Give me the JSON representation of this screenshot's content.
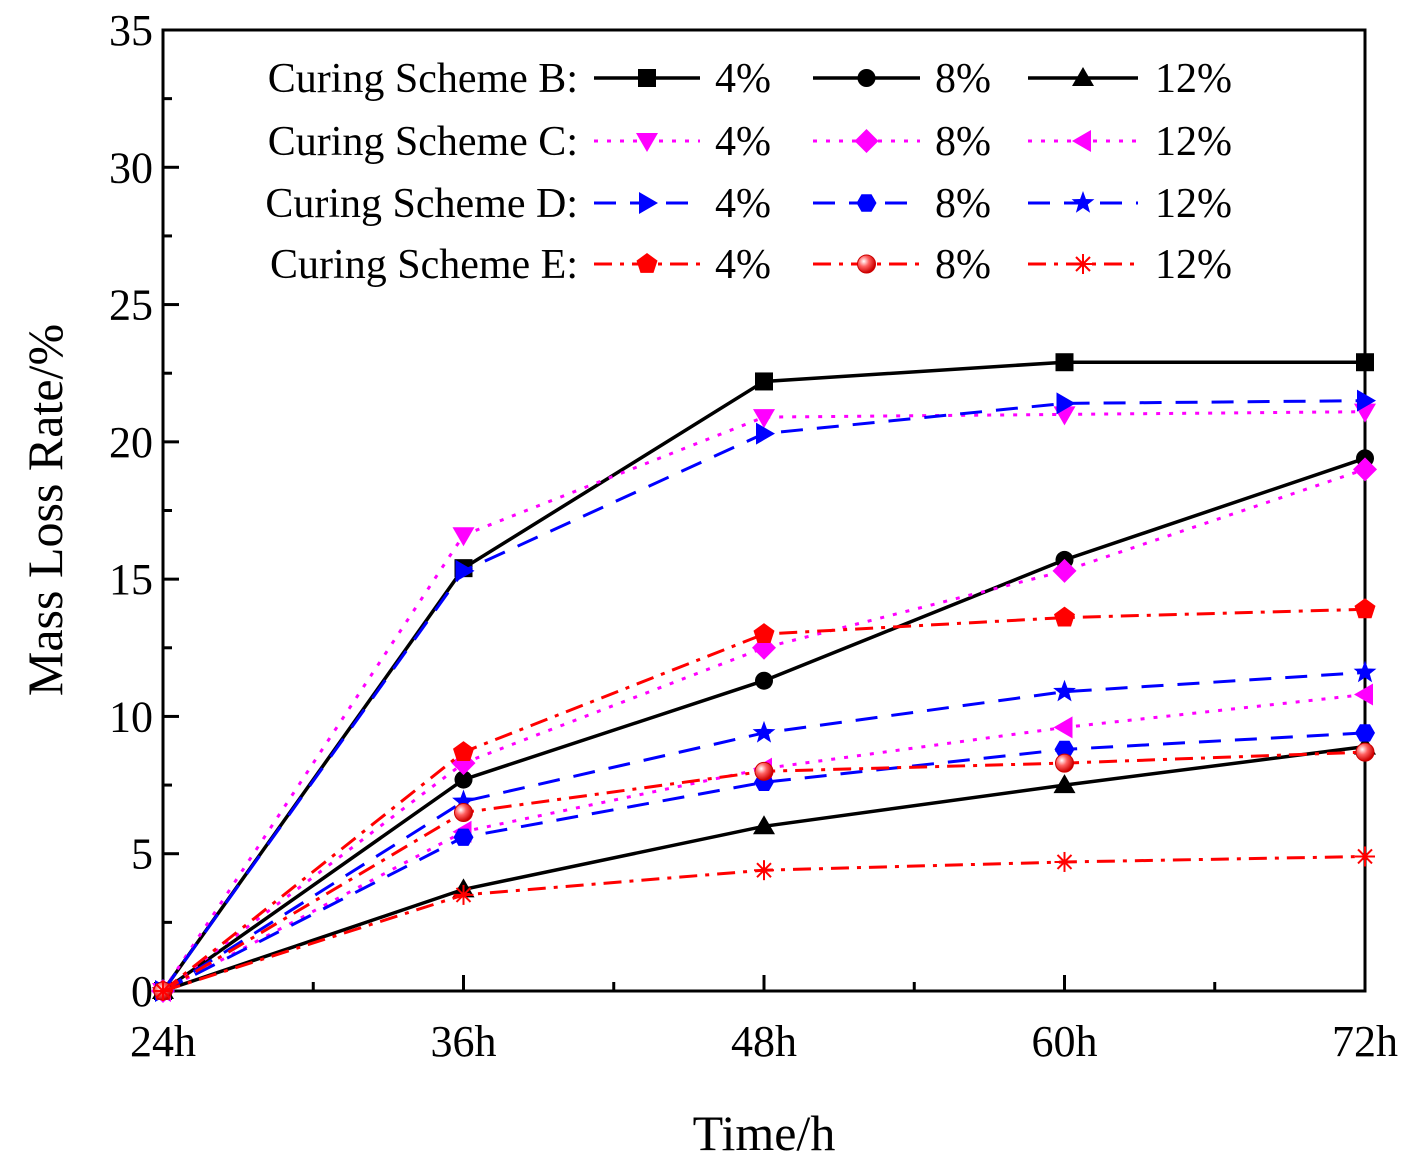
{
  "chart_data": {
    "type": "line",
    "title": "",
    "xlabel": "Time/h",
    "ylabel": "Mass Loss Rate/%",
    "categories": [
      "24h",
      "36h",
      "48h",
      "60h",
      "72h"
    ],
    "ylim": [
      0,
      35
    ],
    "yticks": [
      0,
      5,
      10,
      15,
      20,
      25,
      30,
      35
    ],
    "grid": false,
    "legend_position": "top",
    "legend_groups": [
      {
        "label": "Curing Scheme B:",
        "series": [
          "B 4%",
          "B 8%",
          "B 12%"
        ]
      },
      {
        "label": "Curing Scheme C:",
        "series": [
          "C 4%",
          "C 8%",
          "C 12%"
        ]
      },
      {
        "label": "Curing Scheme D:",
        "series": [
          "D 4%",
          "D 8%",
          "D 12%"
        ]
      },
      {
        "label": "Curing Scheme E:",
        "series": [
          "E 4%",
          "E 8%",
          "E 12%"
        ]
      }
    ],
    "series": [
      {
        "name": "B 4%",
        "legend": "4%",
        "color": "#000000",
        "dash": "solid",
        "marker": "square",
        "values": [
          0,
          15.4,
          22.2,
          22.9,
          22.9
        ]
      },
      {
        "name": "B 8%",
        "legend": "8%",
        "color": "#000000",
        "dash": "solid",
        "marker": "circle",
        "values": [
          0,
          7.7,
          11.3,
          15.7,
          19.4
        ]
      },
      {
        "name": "B 12%",
        "legend": "12%",
        "color": "#000000",
        "dash": "solid",
        "marker": "triangle-up",
        "values": [
          0,
          3.7,
          6.0,
          7.5,
          8.9
        ]
      },
      {
        "name": "C 4%",
        "legend": "4%",
        "color": "#ff00ff",
        "dash": "dot",
        "marker": "triangle-down",
        "values": [
          0,
          16.6,
          20.9,
          21.0,
          21.1
        ]
      },
      {
        "name": "C 8%",
        "legend": "8%",
        "color": "#ff00ff",
        "dash": "dot",
        "marker": "diamond",
        "values": [
          0,
          8.3,
          12.5,
          15.3,
          19.0
        ]
      },
      {
        "name": "C 12%",
        "legend": "12%",
        "color": "#ff00ff",
        "dash": "dot",
        "marker": "triangle-left",
        "values": [
          0,
          5.8,
          8.1,
          9.6,
          10.8
        ]
      },
      {
        "name": "D 4%",
        "legend": "4%",
        "color": "#0000ff",
        "dash": "dash",
        "marker": "triangle-right",
        "values": [
          0,
          15.3,
          20.3,
          21.4,
          21.5
        ]
      },
      {
        "name": "D 8%",
        "legend": "8%",
        "color": "#0000ff",
        "dash": "dash",
        "marker": "hexagon",
        "values": [
          0,
          5.6,
          7.6,
          8.8,
          9.4
        ]
      },
      {
        "name": "D 12%",
        "legend": "12%",
        "color": "#0000ff",
        "dash": "dash",
        "marker": "star",
        "values": [
          0,
          6.9,
          9.4,
          10.9,
          11.6
        ]
      },
      {
        "name": "E 4%",
        "legend": "4%",
        "color": "#ff0000",
        "dash": "dashdot",
        "marker": "pentagon",
        "values": [
          0,
          8.7,
          13.0,
          13.6,
          13.9
        ]
      },
      {
        "name": "E 8%",
        "legend": "8%",
        "color": "#ff0000",
        "dash": "dashdot",
        "marker": "sphere",
        "values": [
          0,
          6.5,
          8.0,
          8.3,
          8.7
        ]
      },
      {
        "name": "E 12%",
        "legend": "12%",
        "color": "#ff0000",
        "dash": "dashdot",
        "marker": "asterisk",
        "values": [
          0,
          3.5,
          4.4,
          4.7,
          4.9
        ]
      }
    ]
  }
}
